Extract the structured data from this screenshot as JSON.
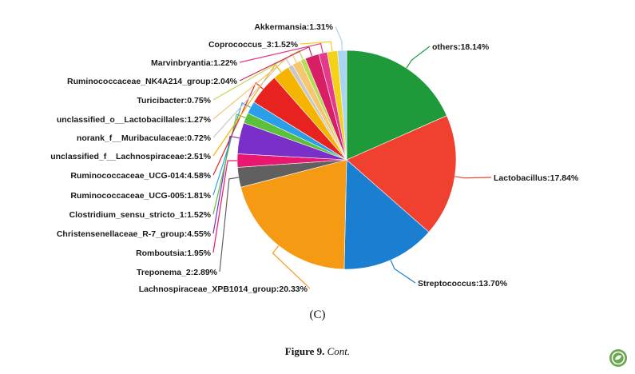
{
  "chart_data": {
    "type": "pie",
    "unit": "%",
    "slices": [
      {
        "label": "others",
        "value": 18.14,
        "display": "others:18.14%",
        "color": "#1e9a3a"
      },
      {
        "label": "Lactobacillus",
        "value": 17.84,
        "display": "Lactobacillus:17.84%",
        "color": "#f0402f"
      },
      {
        "label": "Streptococcus",
        "value": 13.7,
        "display": "Streptococcus:13.70%",
        "color": "#1a7fd0"
      },
      {
        "label": "Lachnospiraceae_XPB1014_group",
        "value": 20.33,
        "display": "Lachnospiraceae_XPB1014_group:20.33%",
        "color": "#f79a13"
      },
      {
        "label": "Treponema_2",
        "value": 2.89,
        "display": "Treponema_2:2.89%",
        "color": "#606060"
      },
      {
        "label": "Romboutsia",
        "value": 1.95,
        "display": "Romboutsia:1.95%",
        "color": "#e8176f"
      },
      {
        "label": "Christensenellaceae_R-7_group",
        "value": 4.55,
        "display": "Christensenellaceae_R-7_group:4.55%",
        "color": "#7a2fc8"
      },
      {
        "label": "Clostridium_sensu_stricto_1",
        "value": 1.52,
        "display": "Clostridium_sensu_stricto_1:1.52%",
        "color": "#5cc03a"
      },
      {
        "label": "Ruminococcaceae_UCG-005",
        "value": 1.81,
        "display": "Ruminococcaceae_UCG-005:1.81%",
        "color": "#2a9fe8"
      },
      {
        "label": "Ruminococcaceae_UCG-014",
        "value": 4.58,
        "display": "Ruminococcaceae_UCG-014:4.58%",
        "color": "#e8231f"
      },
      {
        "label": "unclassified_f__Lachnospiraceae",
        "value": 2.51,
        "display": "unclassified_f__Lachnospiraceae:2.51%",
        "color": "#f5b400"
      },
      {
        "label": "norank_f__Muribaculaceae",
        "value": 0.72,
        "display": "norank_f__Muribaculaceae:0.72%",
        "color": "#c8c8c8"
      },
      {
        "label": "unclassified_o__Lactobacillales",
        "value": 1.27,
        "display": "unclassified_o__Lactobacillales:1.27%",
        "color": "#f4c770"
      },
      {
        "label": "Turicibacter",
        "value": 0.75,
        "display": "Turicibacter:0.75%",
        "color": "#b7dc55"
      },
      {
        "label": "Ruminococcaceae_NK4A214_group",
        "value": 2.04,
        "display": "Ruminococcaceae_NK4A214_group:2.04%",
        "color": "#d81f66"
      },
      {
        "label": "Marvinbryantia",
        "value": 1.22,
        "display": "Marvinbryantia:1.22%",
        "color": "#e33a8c"
      },
      {
        "label": "Coprococcus_3",
        "value": 1.52,
        "display": "Coprococcus_3:1.52%",
        "color": "#f5d21a"
      },
      {
        "label": "Akkermansia",
        "value": 1.31,
        "display": "Akkermansia:1.31%",
        "color": "#a9d4f2"
      }
    ],
    "title": "",
    "legend": "none"
  },
  "panel_label": "(C)",
  "caption": {
    "bold": "Figure 9.",
    "italic": "Cont."
  }
}
